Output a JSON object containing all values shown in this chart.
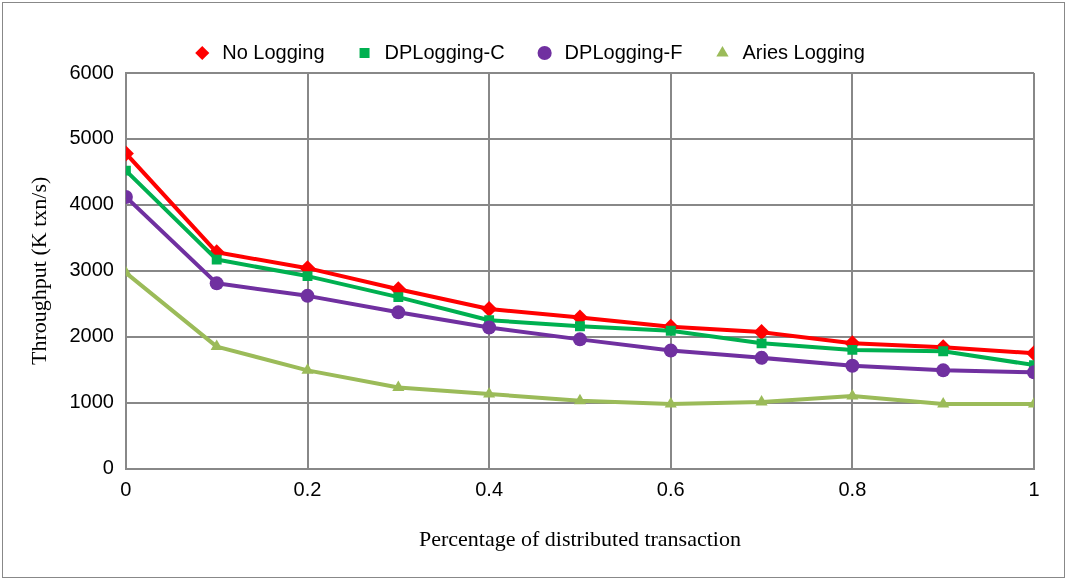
{
  "chart_data": {
    "type": "line",
    "xlabel": "Percentage of distributed transaction",
    "ylabel": "Throughput (K txn/s)",
    "x": [
      0,
      0.1,
      0.2,
      0.3,
      0.4,
      0.5,
      0.6,
      0.7,
      0.8,
      0.9,
      1
    ],
    "series": [
      {
        "name": "No Logging",
        "color": "#ff0000",
        "marker": "diamond",
        "values": [
          4780,
          3280,
          3040,
          2720,
          2420,
          2290,
          2150,
          2070,
          1900,
          1840,
          1750
        ]
      },
      {
        "name": "DPLogging-C",
        "color": "#00b050",
        "marker": "square",
        "values": [
          4520,
          3170,
          2920,
          2600,
          2250,
          2160,
          2090,
          1900,
          1800,
          1780,
          1570
        ]
      },
      {
        "name": "DPLogging-F",
        "color": "#7030a0",
        "marker": "circle",
        "values": [
          4120,
          2810,
          2620,
          2370,
          2140,
          1960,
          1790,
          1680,
          1560,
          1490,
          1460
        ]
      },
      {
        "name": "Aries Logging",
        "color": "#9bbb59",
        "marker": "triangle",
        "values": [
          2970,
          1850,
          1490,
          1230,
          1130,
          1030,
          980,
          1010,
          1100,
          980,
          980
        ]
      }
    ],
    "xlim": [
      0,
      1
    ],
    "xticks": [
      0,
      0.2,
      0.4,
      0.6,
      0.8,
      1
    ],
    "ylim": [
      0,
      6000
    ],
    "yticks": [
      0,
      1000,
      2000,
      3000,
      4000,
      5000,
      6000
    ],
    "grid": true,
    "legend": "top",
    "line_style": "solid"
  }
}
